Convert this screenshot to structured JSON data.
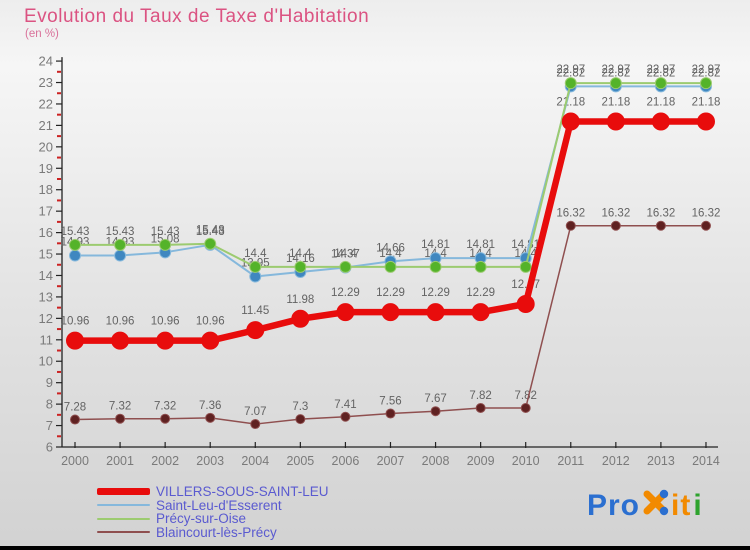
{
  "title": "Evolution du Taux de Taxe d'Habitation",
  "subtitle": "(en %)",
  "colors": {
    "title": "#db5382",
    "legend_text": "#5a5ad0",
    "value_labels": "#636363",
    "axis_text": "#7a7a7a",
    "axis_line": "#222222",
    "minor_tick": "#cc2222"
  },
  "chart_data": {
    "type": "line",
    "x": [
      2000,
      2001,
      2002,
      2003,
      2004,
      2005,
      2006,
      2007,
      2008,
      2009,
      2010,
      2011,
      2012,
      2013,
      2014
    ],
    "xlabel": "",
    "ylabel": "en %",
    "ylim": [
      6,
      24
    ],
    "y_tick_step": 1,
    "grid": false,
    "legend_position": "bottom-left",
    "series": [
      {
        "name": "VILLERS-SOUS-SAINT-LEU",
        "line_color": "#e80c0c",
        "dot_color": "#e80c0c",
        "line_width": 6.5,
        "dot_radius": 8.5,
        "label_offset": 16,
        "values": [
          10.96,
          10.96,
          10.96,
          10.96,
          11.45,
          11.98,
          12.29,
          12.29,
          12.29,
          12.29,
          12.67,
          21.18,
          21.18,
          21.18,
          21.18
        ]
      },
      {
        "name": "Saint-Leu-d'Esserent",
        "line_color": "#85b8dc",
        "dot_color": "#3f87c0",
        "line_width": 2,
        "dot_radius": 5.5,
        "label_offset": 10,
        "values": [
          14.93,
          14.93,
          15.08,
          15.43,
          13.95,
          14.16,
          14.37,
          14.66,
          14.81,
          14.81,
          14.81,
          22.82,
          22.82,
          22.82,
          22.82
        ]
      },
      {
        "name": "Précy-sur-Oise",
        "line_color": "#9ccb70",
        "dot_color": "#54b32a",
        "line_width": 2,
        "dot_radius": 5.5,
        "label_offset": 10,
        "values": [
          15.43,
          15.43,
          15.43,
          15.48,
          14.4,
          14.4,
          14.4,
          14.4,
          14.4,
          14.4,
          14.4,
          22.97,
          22.97,
          22.97,
          22.97
        ]
      },
      {
        "name": "Blaincourt-lès-Précy",
        "line_color": "#8f4f4f",
        "dot_color": "#5f2121",
        "line_width": 1.5,
        "dot_radius": 4.5,
        "label_offset": 9,
        "values": [
          7.28,
          7.32,
          7.32,
          7.36,
          7.07,
          7.3,
          7.41,
          7.56,
          7.67,
          7.82,
          7.82,
          16.32,
          16.32,
          16.32,
          16.32
        ]
      }
    ]
  },
  "logo": {
    "part_pro": "Pro",
    "part_it": "it",
    "part_i": "i",
    "color_blue": "#2b6fd0",
    "color_orange": "#f28a00",
    "color_green": "#2ea32e"
  }
}
